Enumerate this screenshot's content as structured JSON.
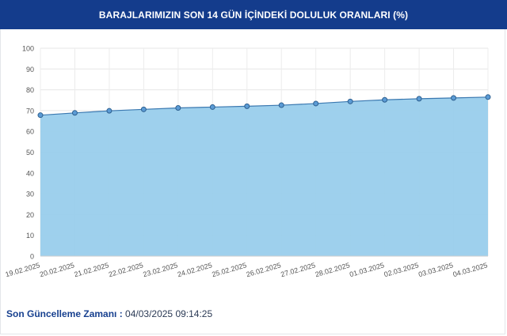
{
  "header": {
    "title": "BARAJLARIMIZIN SON 14 GÜN İÇİNDEKİ DOLULUK ORANLARI (%)"
  },
  "footer": {
    "label": "Son Güncelleme Zamanı :",
    "value": "04/03/2025 09:14:25"
  },
  "colors": {
    "header_bg": "#143c8c",
    "area_fill": "#99cdec",
    "line": "#3a78b0",
    "point": "#5b9bd5"
  },
  "chart_data": {
    "type": "area",
    "title": "BARAJLARIMIZIN SON 14 GÜN İÇİNDEKİ DOLULUK ORANLARI (%)",
    "xlabel": "",
    "ylabel": "",
    "ylim": [
      0,
      100
    ],
    "yticks": [
      0,
      10,
      20,
      30,
      40,
      50,
      60,
      70,
      80,
      90,
      100
    ],
    "grid": true,
    "legend": "none",
    "categories": [
      "19.02.2025",
      "20.02.2025",
      "21.02.2025",
      "22.02.2025",
      "23.02.2025",
      "24.02.2025",
      "25.02.2025",
      "26.02.2025",
      "27.02.2025",
      "28.02.2025",
      "01.03.2025",
      "02.03.2025",
      "03.03.2025",
      "04.03.2025"
    ],
    "values": [
      67.8,
      68.9,
      69.9,
      70.6,
      71.3,
      71.7,
      72.1,
      72.6,
      73.4,
      74.4,
      75.2,
      75.7,
      76.1,
      76.5
    ]
  }
}
